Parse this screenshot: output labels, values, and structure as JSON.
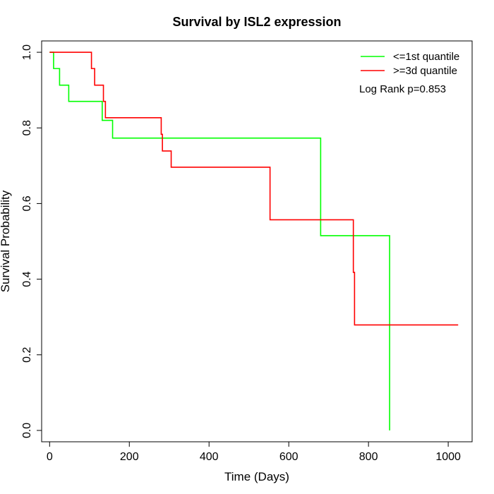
{
  "chart_data": {
    "type": "line",
    "step": true,
    "title": "Survival by ISL2 expression",
    "xlabel": "Time (Days)",
    "ylabel": "Survival Probability",
    "xlim": [
      -20,
      1060
    ],
    "ylim": [
      -0.03,
      1.03
    ],
    "xticks": [
      0,
      200,
      400,
      600,
      800,
      1000
    ],
    "yticks": [
      0.0,
      0.2,
      0.4,
      0.6,
      0.8,
      1.0
    ],
    "xtick_labels": [
      "0",
      "200",
      "400",
      "600",
      "800",
      "1000"
    ],
    "ytick_labels": [
      "0.0",
      "0.2",
      "0.4",
      "0.6",
      "0.8",
      "1.0"
    ],
    "grid": false,
    "legend_position": "top-right",
    "annotation": "Log Rank p=0.853",
    "series": [
      {
        "name": "<=1st quantile",
        "color": "#00ff00",
        "x": [
          0,
          10,
          25,
          48,
          132,
          158,
          680,
          853,
          853
        ],
        "y": [
          1.0,
          0.957,
          0.913,
          0.87,
          0.82,
          0.773,
          0.515,
          0.515,
          0.0
        ]
      },
      {
        "name": ">=3d quantile",
        "color": "#ff0000",
        "x": [
          0,
          105,
          113,
          135,
          140,
          280,
          283,
          305,
          553,
          762,
          765,
          1025
        ],
        "y": [
          1.0,
          0.957,
          0.913,
          0.87,
          0.827,
          0.783,
          0.739,
          0.696,
          0.557,
          0.418,
          0.279,
          0.279
        ]
      }
    ]
  }
}
